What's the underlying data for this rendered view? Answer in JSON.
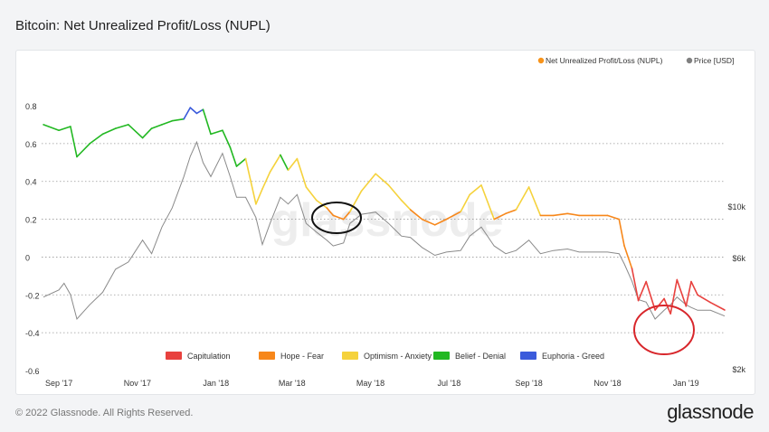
{
  "page": {
    "title": "Bitcoin: Net Unrealized Profit/Loss (NUPL)",
    "copyright": "© 2022 Glassnode. All Rights Reserved.",
    "logo": "glassnode",
    "watermark": "glassnode"
  },
  "chart_data": {
    "type": "line",
    "title": "Bitcoin: Net Unrealized Profit/Loss (NUPL)",
    "x_tick_labels": [
      "Sep '17",
      "Nov '17",
      "Jan '18",
      "Mar '18",
      "May '18",
      "Jul '18",
      "Sep '18",
      "Nov '18",
      "Jan '19"
    ],
    "y_left": {
      "ticks": [
        0.8,
        0.6,
        0.4,
        0.2,
        0,
        -0.2,
        -0.4,
        -0.6
      ],
      "labels": [
        "0.8",
        "0.6",
        "0.4",
        "0.2",
        "0",
        "-0.2",
        "-0.4",
        "-0.6"
      ],
      "range": [
        -0.6,
        0.8
      ]
    },
    "y_right": {
      "scale": "log",
      "ticks": [
        2000,
        6000,
        10000
      ],
      "labels": [
        "$2k",
        "$6k",
        "$10k"
      ]
    },
    "grid": "horizontal dotted",
    "legend_top": [
      {
        "name": "Net Unrealized Profit/Loss (NUPL)",
        "color": "#f7931a"
      },
      {
        "name": "Price [USD]",
        "color": "#808080"
      }
    ],
    "legend_bottom": [
      {
        "name": "Capitulation",
        "color": "#e8413e"
      },
      {
        "name": "Hope - Fear",
        "color": "#f7871a"
      },
      {
        "name": "Optimism - Anxiety",
        "color": "#f5d23c"
      },
      {
        "name": "Belief - Denial",
        "color": "#22b822"
      },
      {
        "name": "Euphoria - Greed",
        "color": "#3b5bdb"
      }
    ],
    "thresholds": {
      "euphoria": 0.75,
      "belief": 0.5,
      "optimism": 0.25,
      "hope": 0
    },
    "nupl": {
      "x": [
        "2017-08-20",
        "2017-09-01",
        "2017-09-10",
        "2017-09-15",
        "2017-09-25",
        "2017-10-05",
        "2017-10-15",
        "2017-10-25",
        "2017-11-05",
        "2017-11-12",
        "2017-11-20",
        "2017-11-28",
        "2017-12-07",
        "2017-12-12",
        "2017-12-17",
        "2017-12-22",
        "2017-12-28",
        "2018-01-06",
        "2018-01-12",
        "2018-01-17",
        "2018-01-24",
        "2018-02-01",
        "2018-02-06",
        "2018-02-12",
        "2018-02-20",
        "2018-02-26",
        "2018-03-05",
        "2018-03-12",
        "2018-03-20",
        "2018-03-28",
        "2018-04-02",
        "2018-04-10",
        "2018-04-15",
        "2018-04-24",
        "2018-05-05",
        "2018-05-15",
        "2018-05-25",
        "2018-06-01",
        "2018-06-10",
        "2018-06-20",
        "2018-06-29",
        "2018-07-10",
        "2018-07-17",
        "2018-07-26",
        "2018-08-05",
        "2018-08-14",
        "2018-08-22",
        "2018-09-01",
        "2018-09-10",
        "2018-09-20",
        "2018-10-01",
        "2018-10-10",
        "2018-10-20",
        "2018-11-01",
        "2018-11-10",
        "2018-11-14",
        "2018-11-20",
        "2018-11-25",
        "2018-12-01",
        "2018-12-08",
        "2018-12-15",
        "2018-12-20",
        "2018-12-25",
        "2019-01-01",
        "2019-01-05",
        "2019-01-10",
        "2019-01-20",
        "2019-01-31"
      ],
      "y": [
        0.7,
        0.67,
        0.69,
        0.53,
        0.6,
        0.65,
        0.68,
        0.7,
        0.63,
        0.68,
        0.7,
        0.72,
        0.73,
        0.79,
        0.76,
        0.78,
        0.65,
        0.67,
        0.58,
        0.48,
        0.52,
        0.28,
        0.36,
        0.45,
        0.54,
        0.46,
        0.52,
        0.37,
        0.3,
        0.26,
        0.22,
        0.2,
        0.24,
        0.35,
        0.44,
        0.38,
        0.3,
        0.25,
        0.2,
        0.17,
        0.2,
        0.24,
        0.33,
        0.38,
        0.2,
        0.23,
        0.25,
        0.37,
        0.22,
        0.22,
        0.23,
        0.22,
        0.22,
        0.22,
        0.2,
        0.06,
        -0.06,
        -0.23,
        -0.13,
        -0.28,
        -0.22,
        -0.3,
        -0.12,
        -0.26,
        -0.13,
        -0.2,
        -0.24,
        -0.28
      ]
    },
    "price_usd": {
      "x": [
        "2017-08-20",
        "2017-09-01",
        "2017-09-05",
        "2017-09-10",
        "2017-09-15",
        "2017-09-25",
        "2017-10-05",
        "2017-10-15",
        "2017-10-25",
        "2017-11-05",
        "2017-11-12",
        "2017-11-20",
        "2017-11-28",
        "2017-12-07",
        "2017-12-12",
        "2017-12-17",
        "2017-12-22",
        "2017-12-28",
        "2018-01-06",
        "2018-01-12",
        "2018-01-17",
        "2018-01-24",
        "2018-02-01",
        "2018-02-06",
        "2018-02-12",
        "2018-02-20",
        "2018-02-26",
        "2018-03-05",
        "2018-03-12",
        "2018-03-20",
        "2018-03-28",
        "2018-04-02",
        "2018-04-10",
        "2018-04-15",
        "2018-04-24",
        "2018-05-05",
        "2018-05-15",
        "2018-05-25",
        "2018-06-01",
        "2018-06-10",
        "2018-06-20",
        "2018-06-29",
        "2018-07-10",
        "2018-07-17",
        "2018-07-26",
        "2018-08-05",
        "2018-08-14",
        "2018-08-22",
        "2018-09-01",
        "2018-09-10",
        "2018-09-20",
        "2018-10-01",
        "2018-10-10",
        "2018-10-20",
        "2018-11-01",
        "2018-11-10",
        "2018-11-14",
        "2018-11-20",
        "2018-11-25",
        "2018-12-01",
        "2018-12-08",
        "2018-12-15",
        "2018-12-20",
        "2018-12-25",
        "2019-01-01",
        "2019-01-05",
        "2019-01-10",
        "2019-01-20",
        "2019-01-31"
      ],
      "y": [
        4100,
        4400,
        4700,
        4200,
        3300,
        3800,
        4300,
        5400,
        5800,
        7200,
        6300,
        8200,
        9900,
        13500,
        16500,
        19000,
        15500,
        13500,
        17000,
        13500,
        11000,
        11000,
        9000,
        6900,
        8500,
        11000,
        10300,
        11300,
        8500,
        7800,
        7200,
        6800,
        7000,
        8500,
        9300,
        9500,
        8500,
        7500,
        7400,
        6700,
        6200,
        6400,
        6500,
        7500,
        8200,
        6800,
        6300,
        6500,
        7200,
        6300,
        6500,
        6600,
        6400,
        6400,
        6400,
        6300,
        5700,
        4800,
        4000,
        3900,
        3300,
        3600,
        3800,
        4100,
        3800,
        3700,
        3600,
        3600,
        3400
      ]
    }
  }
}
